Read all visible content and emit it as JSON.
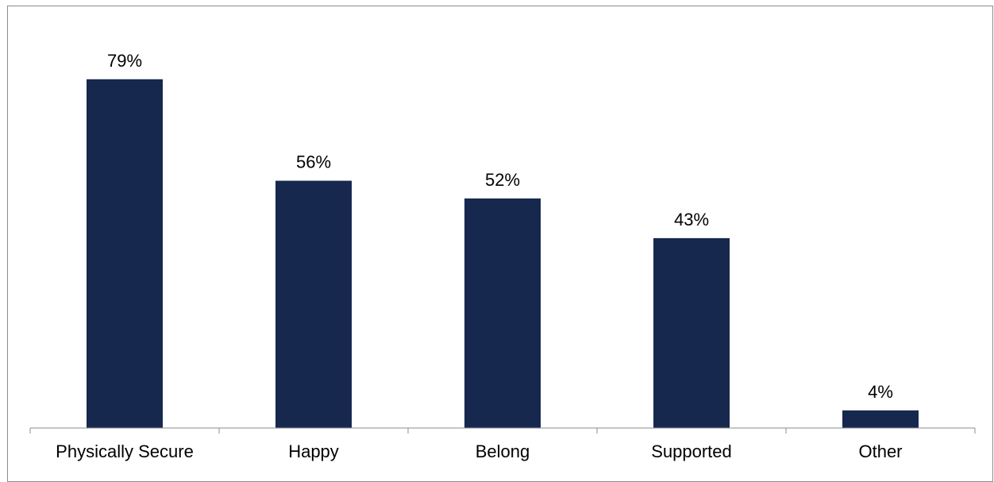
{
  "chart_data": {
    "type": "bar",
    "categories": [
      "Physically Secure",
      "Happy",
      "Belong",
      "Supported",
      "Other"
    ],
    "values": [
      79,
      56,
      52,
      43,
      4
    ],
    "value_labels": [
      "79%",
      "56%",
      "52%",
      "43%",
      "4%"
    ],
    "unit": "%",
    "title": "",
    "xlabel": "",
    "ylabel": "",
    "ylim": [
      0,
      85
    ],
    "grid": false,
    "legend": "none",
    "bar_color": "#17284f",
    "axis_color": "#8c8c8c"
  }
}
